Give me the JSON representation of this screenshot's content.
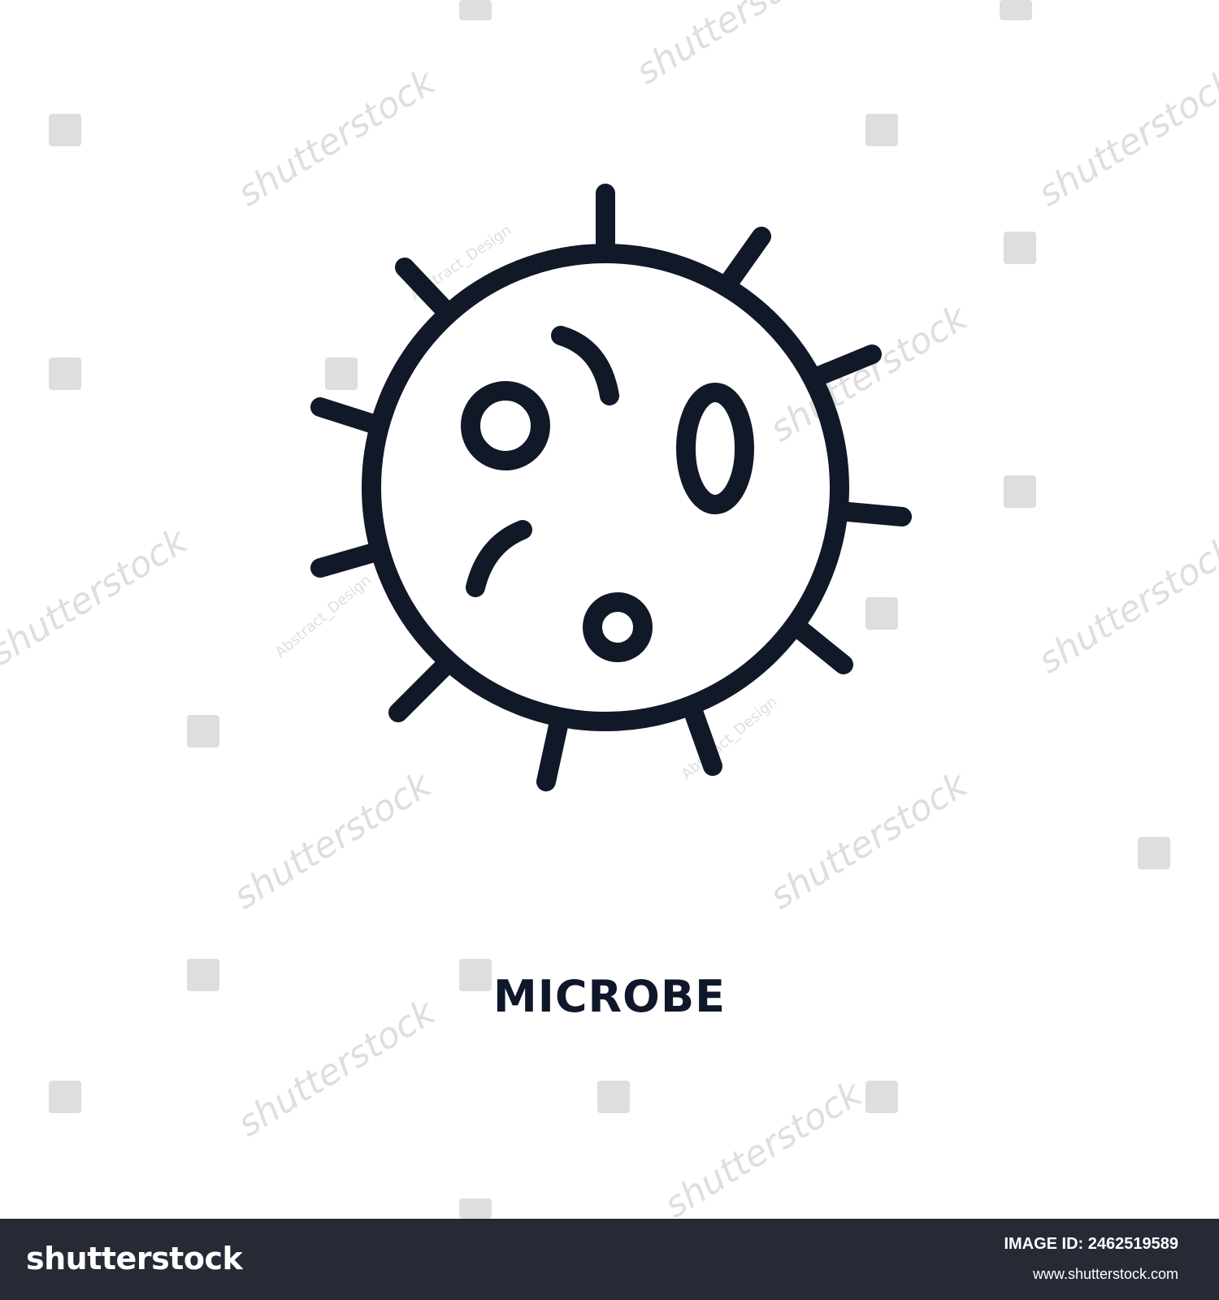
{
  "colors": {
    "background": "#ffffff",
    "icon_stroke": "#111827",
    "caption_text": "#0f172a",
    "footer_background": "#252a35",
    "footer_text": "#ffffff",
    "watermark": "#c4c4c4"
  },
  "icon": {
    "name": "microbe-icon"
  },
  "caption": "MICROBE",
  "watermarks": {
    "stock_text": "shutterstock",
    "author_text": "Abstract_Design"
  },
  "footer": {
    "brand": "shutterstock",
    "image_id": "IMAGE ID: 2462519589",
    "url": "www.shutterstock.com"
  }
}
